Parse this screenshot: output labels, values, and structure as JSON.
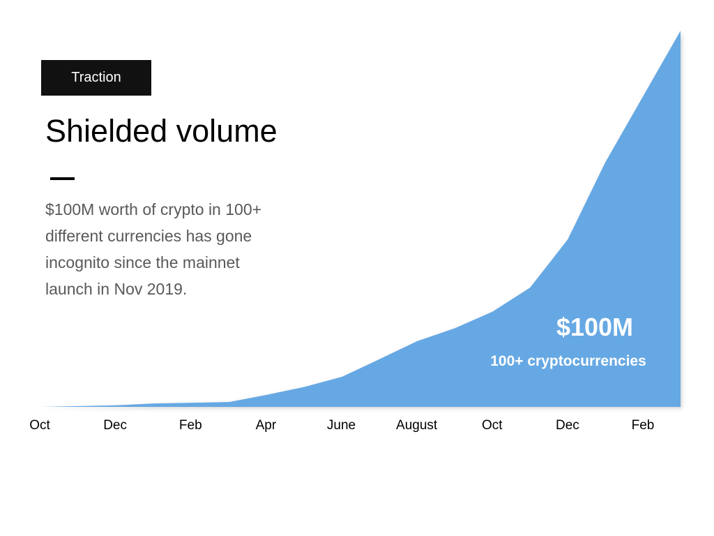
{
  "tag": "Traction",
  "title": "Shielded volume",
  "description_lines": [
    "$100M worth of crypto in 100+",
    "different currencies has gone",
    "incognito since the mainnet",
    "launch in Nov 2019."
  ],
  "colors": {
    "area": "#66a8e3",
    "tag_bg": "#111111",
    "text": "#000000",
    "muted_text": "#595959",
    "annotation_text": "#ffffff"
  },
  "chart_data": {
    "type": "area",
    "x_tick_labels": [
      "Oct",
      "Dec",
      "Feb",
      "Apr",
      "June",
      "August",
      "Oct",
      "Dec",
      "Feb"
    ],
    "x": [
      0,
      1,
      2,
      3,
      4,
      5,
      6,
      7,
      8,
      9,
      10,
      11,
      12,
      13,
      14,
      15,
      16,
      17
    ],
    "values": [
      0,
      0.2,
      0.4,
      0.9,
      1.1,
      1.3,
      3.2,
      5.3,
      8.0,
      12.7,
      17.5,
      20.9,
      25.3,
      31.7,
      44.5,
      65.0,
      82.5,
      100
    ],
    "ylim": [
      0,
      100
    ],
    "y_unit": "$M",
    "annotations": [
      "$100M",
      "100+ cryptocurrencies"
    ],
    "grid": false,
    "legend": "none"
  }
}
